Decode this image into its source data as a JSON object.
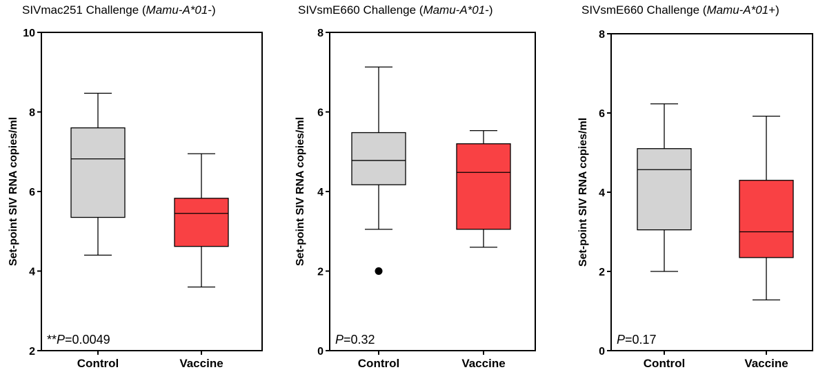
{
  "chart_data": [
    {
      "type": "box",
      "title_main": "SIVmac251 Challenge (",
      "title_italic": "Mamu-A*01",
      "title_end": "-)",
      "ylabel": "Set-point SIV RNA copies/ml",
      "ylim": [
        2,
        10
      ],
      "yticks": [
        2,
        4,
        6,
        8,
        10
      ],
      "categories": [
        "Control",
        "Vaccine"
      ],
      "boxes": [
        {
          "category": "Control",
          "min": 4.4,
          "q1": 5.35,
          "median": 6.82,
          "q3": 7.6,
          "max": 8.47,
          "color": "#d3d3d3",
          "outliers": []
        },
        {
          "category": "Vaccine",
          "min": 3.6,
          "q1": 4.62,
          "median": 5.45,
          "q3": 5.83,
          "max": 6.95,
          "color": "#f94144",
          "outliers": []
        }
      ],
      "annotation_prefix": "**",
      "annotation_p": "P",
      "annotation_value": "=0.0049"
    },
    {
      "type": "box",
      "title_main": "SIVsmE660 Challenge (",
      "title_italic": "Mamu-A*01",
      "title_end": "-)",
      "ylabel": "Set-point SIV RNA copies/ml",
      "ylim": [
        0,
        8
      ],
      "yticks": [
        0,
        2,
        4,
        6,
        8
      ],
      "categories": [
        "Control",
        "Vaccine"
      ],
      "boxes": [
        {
          "category": "Control",
          "min": 3.05,
          "q1": 4.17,
          "median": 4.78,
          "q3": 5.48,
          "max": 7.13,
          "color": "#d3d3d3",
          "outliers": [
            2.0
          ]
        },
        {
          "category": "Vaccine",
          "min": 2.6,
          "q1": 3.05,
          "median": 4.48,
          "q3": 5.2,
          "max": 5.53,
          "color": "#f94144",
          "outliers": []
        }
      ],
      "annotation_prefix": "",
      "annotation_p": "P",
      "annotation_value": "=0.32"
    },
    {
      "type": "box",
      "title_main": "SIVsmE660 Challenge (",
      "title_italic": "Mamu-A*01",
      "title_end": "+)",
      "ylabel": "Set-point SIV RNA copies/ml",
      "ylim": [
        0,
        8
      ],
      "yticks": [
        0,
        2,
        4,
        6,
        8
      ],
      "categories": [
        "Control",
        "Vaccine"
      ],
      "boxes": [
        {
          "category": "Control",
          "min": 2.0,
          "q1": 3.05,
          "median": 4.57,
          "q3": 5.1,
          "max": 6.23,
          "color": "#d3d3d3",
          "outliers": []
        },
        {
          "category": "Vaccine",
          "min": 1.28,
          "q1": 2.35,
          "median": 3.0,
          "q3": 4.3,
          "max": 5.92,
          "color": "#f94144",
          "outliers": []
        }
      ],
      "annotation_prefix": "",
      "annotation_p": "P",
      "annotation_value": "=0.17"
    }
  ]
}
